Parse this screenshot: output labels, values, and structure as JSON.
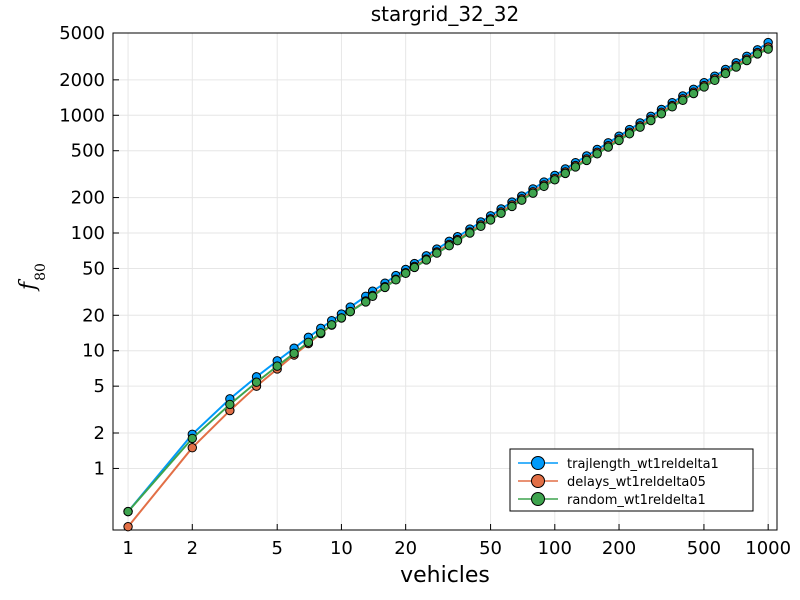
{
  "chart_data": {
    "type": "line",
    "title": "stargrid_32_32",
    "xlabel": "vehicles",
    "ylabel": "f",
    "ylabel_subscript": "80",
    "xscale": "log",
    "yscale": "log",
    "xlim": [
      0.85,
      1100
    ],
    "ylim": [
      0.3,
      5000
    ],
    "xticks": [
      1,
      2,
      5,
      10,
      20,
      50,
      100,
      200,
      500,
      1000
    ],
    "xtick_labels": [
      "1",
      "2",
      "5",
      "10",
      "20",
      "50",
      "100",
      "200",
      "500",
      "1000"
    ],
    "yticks": [
      1,
      2,
      5,
      10,
      20,
      50,
      100,
      200,
      500,
      1000,
      2000,
      5000
    ],
    "ytick_labels": [
      "1",
      "2",
      "5",
      "10",
      "20",
      "50",
      "100",
      "200",
      "500",
      "1000",
      "2000",
      "5000"
    ],
    "grid": true,
    "legend_position": "bottom-right",
    "series": [
      {
        "name": "trajlength_wt1reldelta1",
        "color": "#009AFA",
        "x": [
          1,
          2,
          3,
          4,
          5,
          6,
          7,
          8,
          9,
          10,
          11,
          13,
          14,
          16,
          18,
          20,
          22,
          25,
          28,
          32,
          35,
          40,
          45,
          50,
          56,
          63,
          70,
          79,
          89,
          100,
          112,
          125,
          141,
          158,
          178,
          200,
          224,
          251,
          282,
          316,
          355,
          398,
          447,
          501,
          562,
          631,
          708,
          794,
          891,
          1000
        ],
        "y": [
          0.43,
          1.95,
          3.9,
          6.0,
          8.2,
          10.5,
          13.0,
          15.5,
          18.0,
          20.5,
          23.5,
          29.0,
          32.0,
          37.5,
          43.5,
          49.0,
          55.0,
          64.0,
          73.0,
          85.0,
          93.0,
          108.0,
          124.0,
          140.0,
          160.0,
          183.0,
          206.0,
          237.0,
          271.0,
          308.0,
          350.0,
          396.0,
          451.0,
          512.0,
          584.0,
          665.0,
          757.0,
          860.0,
          980.0,
          1120.0,
          1280.0,
          1460.0,
          1660.0,
          1890.0,
          2150.0,
          2450.0,
          2790.0,
          3170.0,
          3600.0,
          4150.0
        ]
      },
      {
        "name": "delays_wt1reldelta05",
        "color": "#E26F46",
        "x": [
          1,
          2,
          3,
          4,
          5,
          6,
          7,
          8,
          9,
          10,
          11,
          13,
          14,
          16,
          18,
          20,
          22,
          25,
          28,
          32,
          35,
          40,
          45,
          50,
          56,
          63,
          70,
          79,
          89,
          100,
          112,
          125,
          141,
          158,
          178,
          200,
          224,
          251,
          282,
          316,
          355,
          398,
          447,
          501,
          562,
          631,
          708,
          794,
          891,
          1000
        ],
        "y": [
          0.32,
          1.5,
          3.1,
          5.0,
          7.0,
          9.2,
          11.5,
          14.0,
          16.5,
          19.0,
          21.5,
          26.5,
          29.5,
          35.0,
          40.5,
          46.0,
          52.0,
          60.0,
          69.0,
          80.0,
          88.0,
          102.0,
          117.0,
          132.0,
          151.0,
          173.0,
          195.0,
          224.0,
          256.0,
          291.0,
          330.0,
          374.0,
          426.0,
          484.0,
          552.0,
          629.0,
          716.0,
          814.0,
          928.0,
          1060.0,
          1210.0,
          1380.0,
          1570.0,
          1790.0,
          2040.0,
          2320.0,
          2640.0,
          3000.0,
          3410.0,
          3800.0
        ]
      },
      {
        "name": "random_wt1reldelta1",
        "color": "#3EA44E",
        "x": [
          1,
          2,
          3,
          4,
          5,
          6,
          7,
          8,
          9,
          10,
          11,
          13,
          14,
          16,
          18,
          20,
          22,
          25,
          28,
          32,
          35,
          40,
          45,
          50,
          56,
          63,
          70,
          79,
          89,
          100,
          112,
          125,
          141,
          158,
          178,
          200,
          224,
          251,
          282,
          316,
          355,
          398,
          447,
          501,
          562,
          631,
          708,
          794,
          891,
          1000
        ],
        "y": [
          0.43,
          1.8,
          3.5,
          5.4,
          7.4,
          9.5,
          11.8,
          14.2,
          16.6,
          19.0,
          21.5,
          26.0,
          29.0,
          34.5,
          40.0,
          45.5,
          51.0,
          59.0,
          67.5,
          78.0,
          86.0,
          100.0,
          114.0,
          129.0,
          147.0,
          168.0,
          190.0,
          218.0,
          249.0,
          283.0,
          321.0,
          364.0,
          414.0,
          471.0,
          537.0,
          612.0,
          697.0,
          793.0,
          903.0,
          1030.0,
          1180.0,
          1340.0,
          1530.0,
          1740.0,
          1980.0,
          2260.0,
          2570.0,
          2920.0,
          3320.0,
          3650.0
        ]
      }
    ]
  }
}
